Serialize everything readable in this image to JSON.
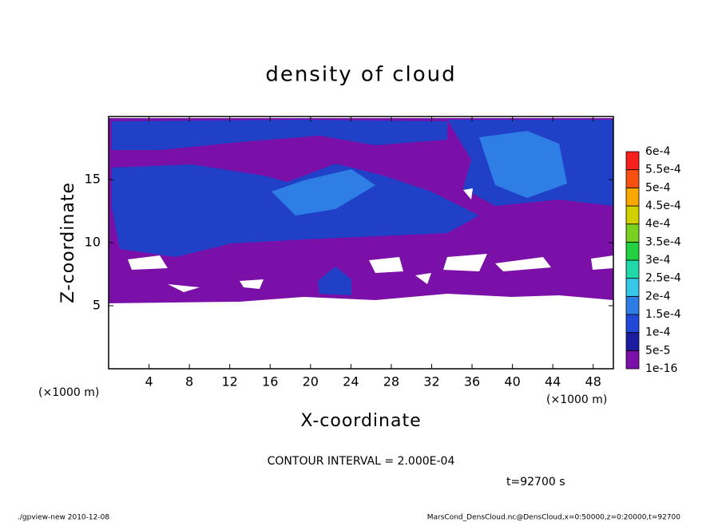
{
  "chart_data": {
    "type": "contour",
    "title": "density of cloud",
    "xlabel": "X-coordinate",
    "ylabel": "Z-coordinate",
    "x_unit_label": "(×1000 m)",
    "xlim": [
      0,
      50
    ],
    "xticks": [
      4,
      8,
      12,
      16,
      20,
      24,
      28,
      32,
      36,
      40,
      44,
      48
    ],
    "ylim": [
      0,
      20
    ],
    "yticks": [
      5,
      10,
      15
    ],
    "colorbar": {
      "levels": [
        {
          "value": 1e-16,
          "label": "1e-16"
        },
        {
          "value": 5e-05,
          "label": "5e-5"
        },
        {
          "value": 0.0001,
          "label": "1e-4"
        },
        {
          "value": 0.00015,
          "label": "1.5e-4"
        },
        {
          "value": 0.0002,
          "label": "2e-4"
        },
        {
          "value": 0.00025,
          "label": "2.5e-4"
        },
        {
          "value": 0.0003,
          "label": "3e-4"
        },
        {
          "value": 0.00035,
          "label": "3.5e-4"
        },
        {
          "value": 0.0004,
          "label": "4e-4"
        },
        {
          "value": 0.00045,
          "label": "4.5e-4"
        },
        {
          "value": 0.0005,
          "label": "5e-4"
        },
        {
          "value": 0.00055,
          "label": "5.5e-4"
        },
        {
          "value": 0.0006,
          "label": "6e-4"
        }
      ],
      "colors": [
        "#7a10a8",
        "#1c1ca0",
        "#2248d8",
        "#2e7ee6",
        "#36c8e6",
        "#20d8a8",
        "#22d040",
        "#78d020",
        "#d0d000",
        "#f8a800",
        "#f85010",
        "#f8201c",
        "#f89090"
      ]
    },
    "contour_interval": "CONTOUR INTERVAL = 2.000E-04",
    "time_label": "t=92700 s",
    "footer_left": "./gpview-new  2010-12-08",
    "footer_right": "MarsCond_DensCloud.nc@DensCloud,x=0:50000,z=0:20000,t=92700"
  }
}
